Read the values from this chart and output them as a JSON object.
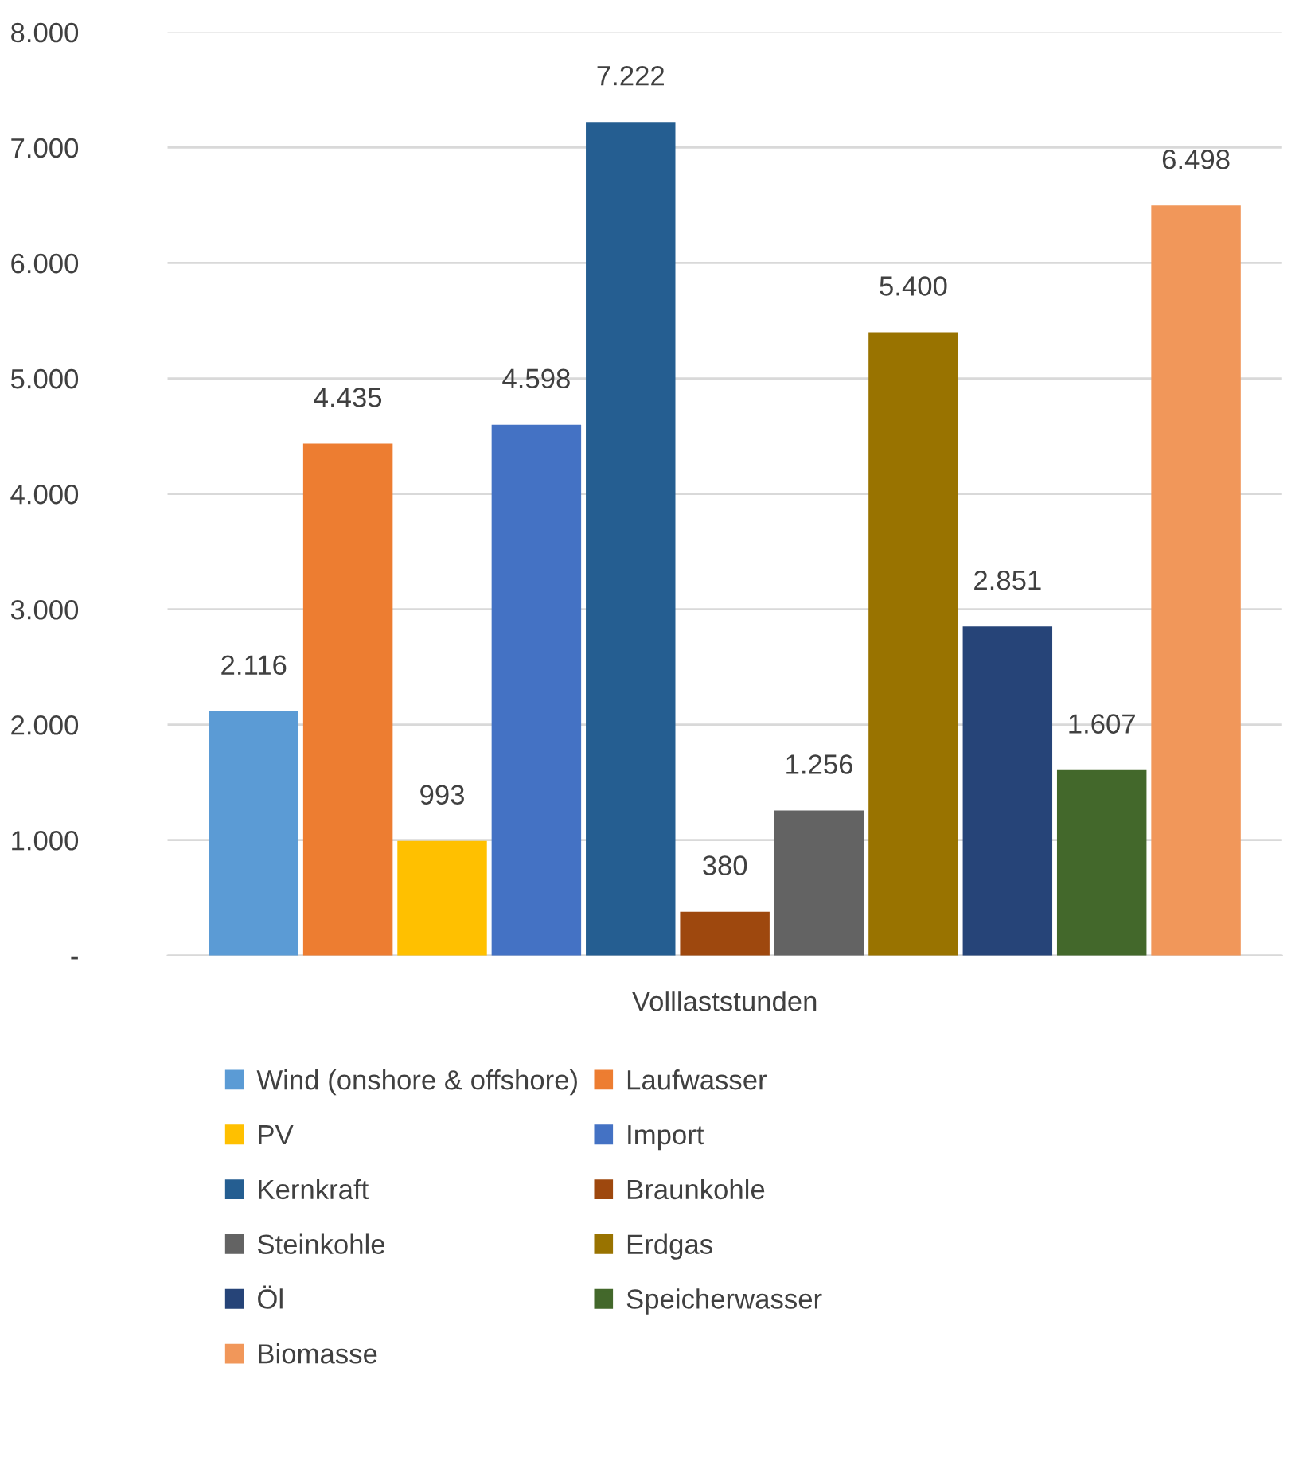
{
  "chart_data": {
    "type": "bar",
    "categories": [
      "Volllaststunden"
    ],
    "xlabel": null,
    "series": [
      {
        "name": "Wind (onshore & offshore)",
        "color": "#5b9bd5",
        "values": [
          2116
        ],
        "value_labels": [
          "2.116"
        ]
      },
      {
        "name": "Laufwasser",
        "color": "#ed7d31",
        "values": [
          4435
        ],
        "value_labels": [
          "4.435"
        ]
      },
      {
        "name": "PV",
        "color": "#ffc000",
        "values": [
          993
        ],
        "value_labels": [
          "993"
        ]
      },
      {
        "name": "Import",
        "color": "#4472c4",
        "values": [
          4598
        ],
        "value_labels": [
          "4.598"
        ]
      },
      {
        "name": "Kernkraft",
        "color": "#255e91",
        "values": [
          7222
        ],
        "value_labels": [
          "7.222"
        ]
      },
      {
        "name": "Braunkohle",
        "color": "#9e480e",
        "values": [
          380
        ],
        "value_labels": [
          "380"
        ]
      },
      {
        "name": "Steinkohle",
        "color": "#636363",
        "values": [
          1256
        ],
        "value_labels": [
          "1.256"
        ]
      },
      {
        "name": "Erdgas",
        "color": "#997300",
        "values": [
          5400
        ],
        "value_labels": [
          "5.400"
        ]
      },
      {
        "name": "Öl",
        "color": "#264478",
        "values": [
          2851
        ],
        "value_labels": [
          "2.851"
        ]
      },
      {
        "name": "Speicherwasser",
        "color": "#43682b",
        "values": [
          1607
        ],
        "value_labels": [
          "1.607"
        ]
      },
      {
        "name": "Biomasse",
        "color": "#f1975a",
        "values": [
          6498
        ],
        "value_labels": [
          "6.498"
        ]
      }
    ],
    "ylim": [
      0,
      8000
    ],
    "yticks": [
      {
        "value": 0,
        "label": "-"
      },
      {
        "value": 1000,
        "label": "1.000"
      },
      {
        "value": 2000,
        "label": "2.000"
      },
      {
        "value": 3000,
        "label": "3.000"
      },
      {
        "value": 4000,
        "label": "4.000"
      },
      {
        "value": 5000,
        "label": "5.000"
      },
      {
        "value": 6000,
        "label": "6.000"
      },
      {
        "value": 7000,
        "label": "7.000"
      },
      {
        "value": 8000,
        "label": "8.000"
      }
    ],
    "grid": "y",
    "legend": "bottom"
  }
}
